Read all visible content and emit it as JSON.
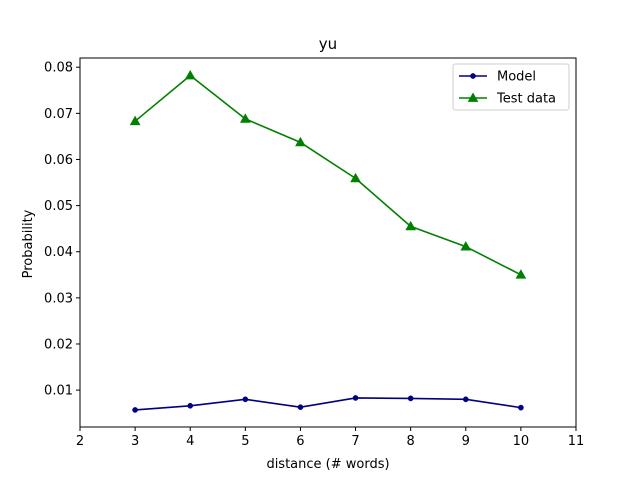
{
  "chart_data": {
    "type": "line",
    "title": "yu",
    "xlabel": "distance (# words)",
    "ylabel": "Probability",
    "xlim": [
      2,
      11
    ],
    "ylim": [
      0.002,
      0.082
    ],
    "xticks": [
      "2",
      "3",
      "4",
      "5",
      "6",
      "7",
      "8",
      "9",
      "10",
      "11"
    ],
    "yticks": [
      "0.01",
      "0.02",
      "0.03",
      "0.04",
      "0.05",
      "0.06",
      "0.07",
      "0.08"
    ],
    "grid": false,
    "legend_position": "top-right",
    "x": [
      3,
      4,
      5,
      6,
      7,
      8,
      9,
      10
    ],
    "series": [
      {
        "name": "Model",
        "color": "#000080",
        "marker": "circle",
        "values": [
          0.0057,
          0.0066,
          0.008,
          0.0063,
          0.0083,
          0.0082,
          0.008,
          0.0062
        ]
      },
      {
        "name": "Test data",
        "color": "#008000",
        "marker": "triangle",
        "values": [
          0.0683,
          0.0782,
          0.0688,
          0.0637,
          0.0559,
          0.0455,
          0.0411,
          0.035
        ]
      }
    ]
  }
}
